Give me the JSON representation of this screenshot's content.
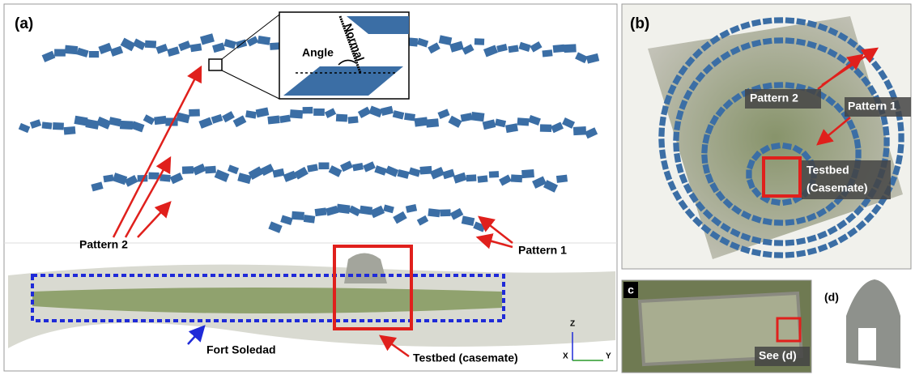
{
  "panels": {
    "a": {
      "label": "(a)",
      "inset": {
        "angle": "Angle",
        "normal": "Normal"
      },
      "annotations": {
        "pattern_2": "Pattern 2",
        "pattern_1": "Pattern 1",
        "fort": "Fort Soledad",
        "testbed": "Testbed (casemate)"
      },
      "axes": {
        "z": "Z",
        "x": "X",
        "y": "Y"
      }
    },
    "b": {
      "label": "(b)",
      "annotations": {
        "pattern_2": "Pattern 2",
        "pattern_1": "Pattern 1",
        "testbed": [
          "Testbed",
          "(Casemate)"
        ]
      }
    },
    "c": {
      "label": "c",
      "annotation": "See (d)"
    },
    "d": {
      "label": "(d)"
    }
  }
}
